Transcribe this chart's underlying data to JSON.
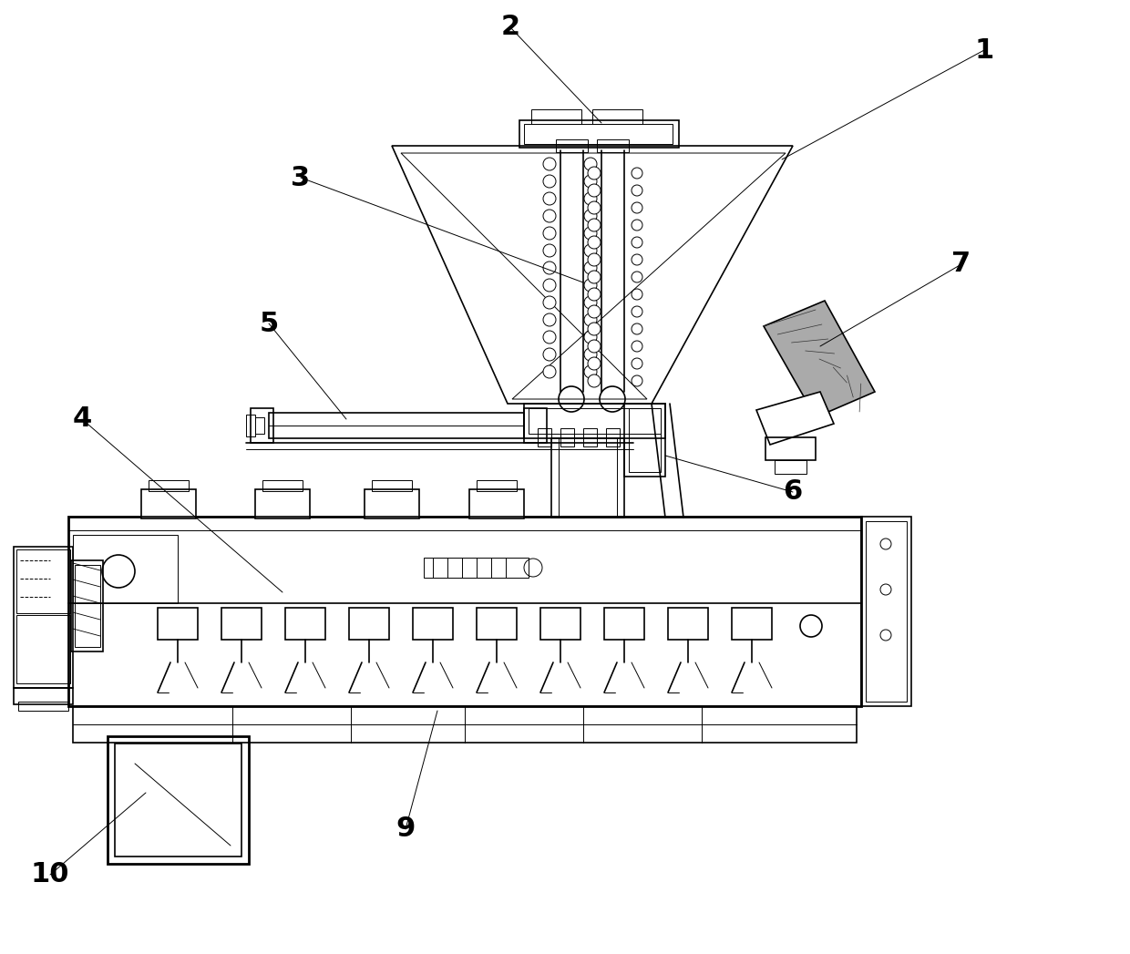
{
  "bg_color": "#ffffff",
  "line_color": "#000000",
  "label_color": "#000000",
  "fig_width": 12.4,
  "fig_height": 10.47,
  "dpi": 100,
  "label_fontsize": 22
}
